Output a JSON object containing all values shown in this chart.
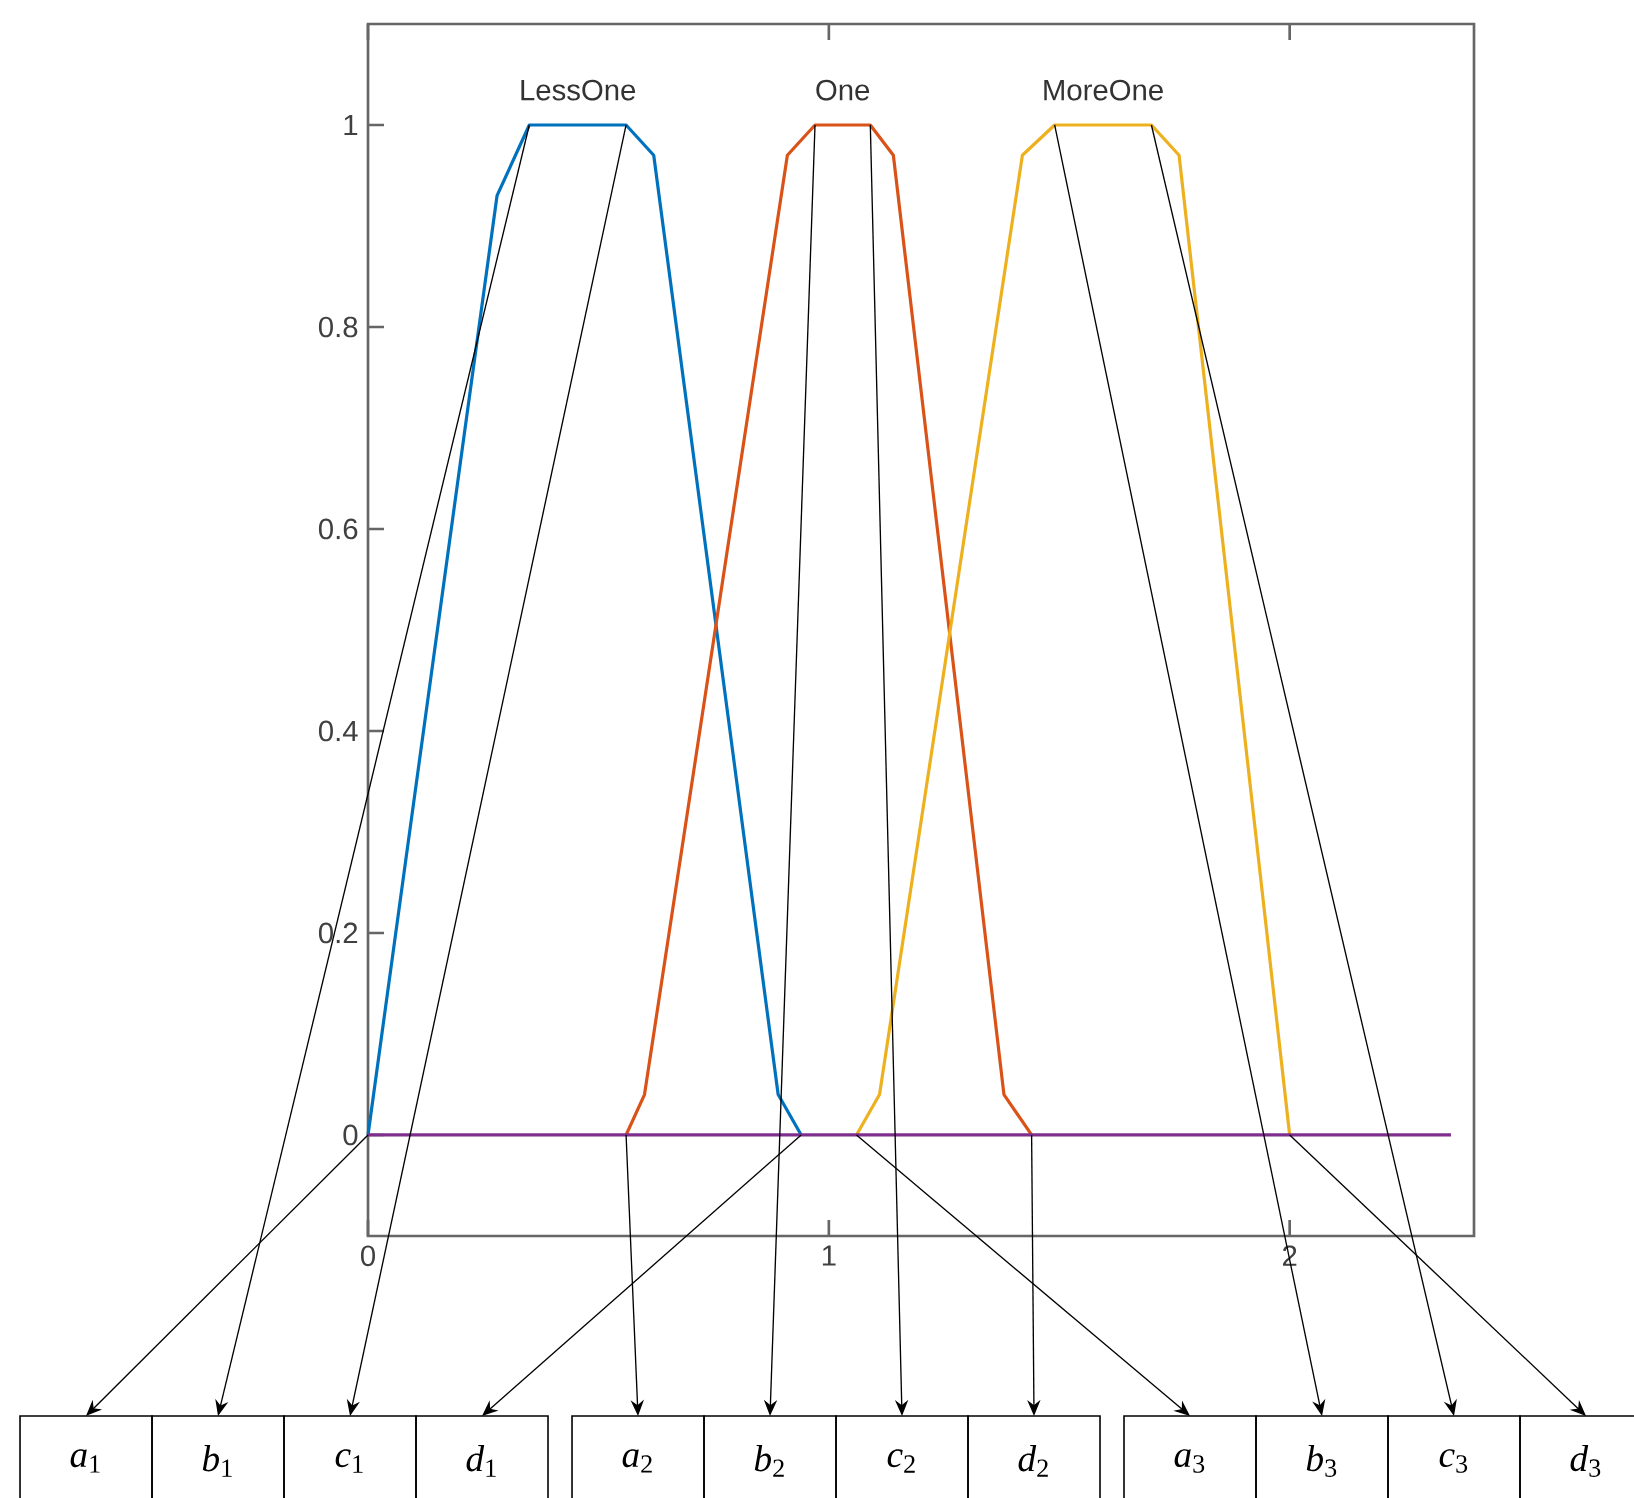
{
  "chart_data": {
    "type": "line",
    "xlim": [
      0,
      2.4
    ],
    "ylim": [
      -0.1,
      1.1
    ],
    "xticks": [
      0,
      1,
      2
    ],
    "yticks": [
      0,
      0.2,
      0.4,
      0.6,
      0.8,
      1
    ],
    "series": [
      {
        "name": "LessOne",
        "color": "#0072bd",
        "x": [
          0,
          0.28,
          0.35,
          0.56,
          0.62,
          0.89,
          0.94
        ],
        "values": [
          0,
          0.93,
          1,
          1,
          0.97,
          0.04,
          0
        ]
      },
      {
        "name": "One",
        "color": "#d95319",
        "x": [
          0.56,
          0.6,
          0.91,
          0.97,
          1.09,
          1.14,
          1.38,
          1.44
        ],
        "values": [
          0,
          0.04,
          0.97,
          1,
          1,
          0.97,
          0.04,
          0
        ]
      },
      {
        "name": "MoreOne",
        "color": "#edb120",
        "x": [
          1.06,
          1.11,
          1.42,
          1.49,
          1.7,
          1.76,
          2.0
        ],
        "values": [
          0,
          0.04,
          0.97,
          1,
          1,
          0.97,
          0
        ]
      },
      {
        "color": "#7e2f8e",
        "x": [
          0,
          2.35
        ],
        "values": [
          0,
          0
        ]
      }
    ],
    "annotations": [
      "*a*$_{1}$",
      "*b*$_{1}$",
      "*c*$_{1}$",
      "*d*$_{1}$",
      "*a*$_{2}$",
      "*b*$_{2}$",
      "*c*$_{2}$",
      "*d*$_{2}$",
      "*a*$_{3}$",
      "*b*$_{3}$",
      "*c*$_{3}$",
      "*d*$_{3}$"
    ]
  }
}
